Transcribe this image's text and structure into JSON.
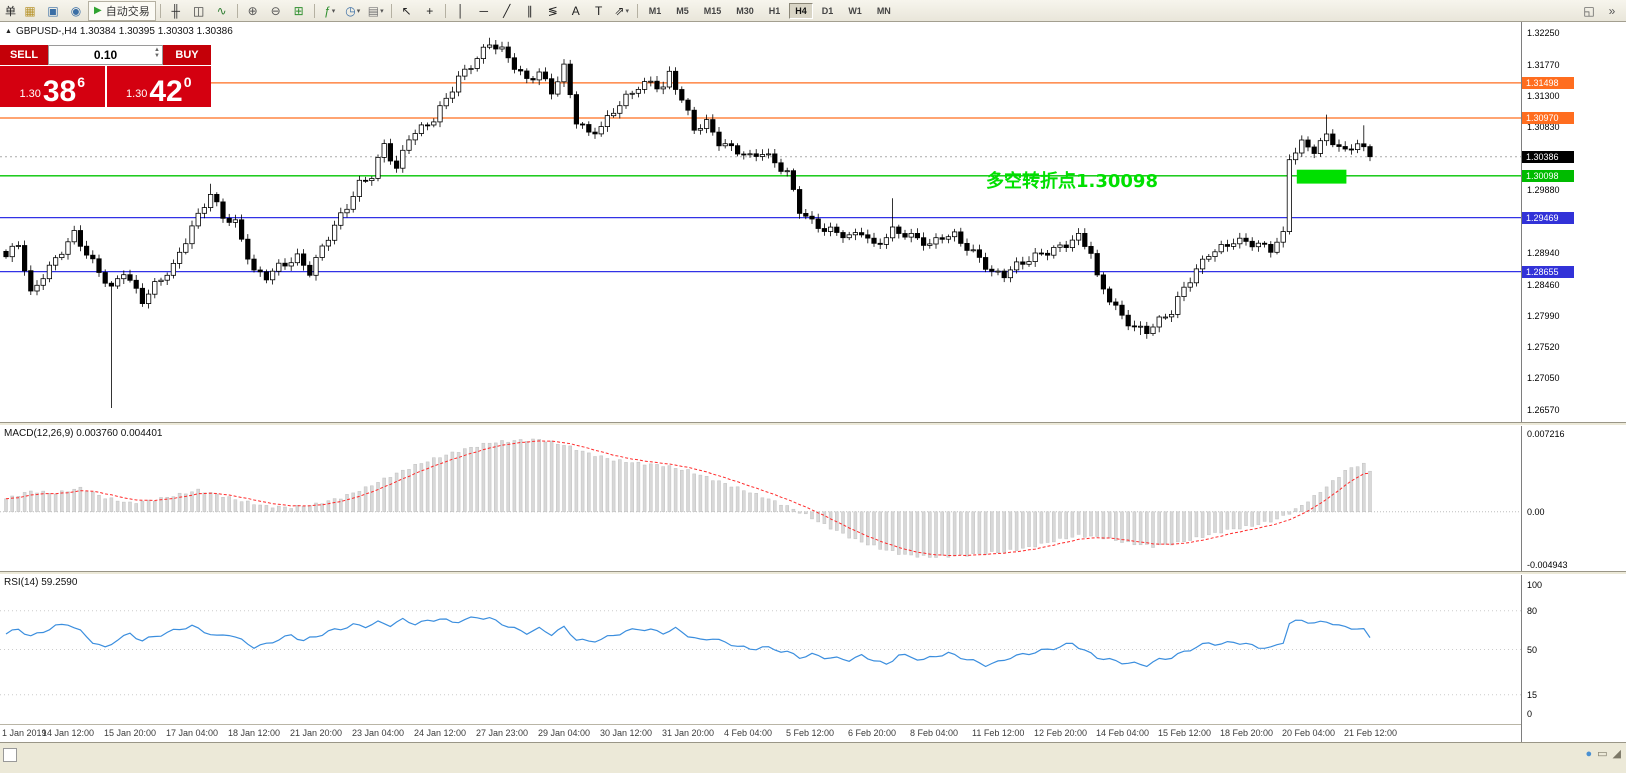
{
  "symbol_header": {
    "marker": "▲",
    "text": "GBPUSD-,H4  1.30384 1.30395 1.30303 1.30386"
  },
  "trade_panel": {
    "sell_label": "SELL",
    "buy_label": "BUY",
    "volume": "0.10",
    "sell_big": {
      "l": "1.30",
      "m": "38",
      "s": "6"
    },
    "buy_big": {
      "l": "1.30",
      "m": "42",
      "s": "0"
    }
  },
  "toolbar": {
    "active_timeframe": "H4",
    "items": [
      {
        "t": "label",
        "name": "cropped-menu-text",
        "g": "单"
      },
      {
        "t": "btn",
        "name": "new-chart-icon",
        "g": "▦",
        "c": "#b8952e"
      },
      {
        "t": "btn",
        "name": "print-icon",
        "g": "▣",
        "c": "#3a6ea5"
      },
      {
        "t": "btn",
        "name": "profile-icon",
        "g": "◉",
        "c": "#3a6ea5"
      },
      {
        "t": "autotrade",
        "name": "autotrading-button",
        "g": "▶",
        "label": "自动交易"
      },
      {
        "t": "sep"
      },
      {
        "t": "btn",
        "name": "bar-chart-icon",
        "g": "╫",
        "c": "#333333"
      },
      {
        "t": "btn",
        "name": "candlestick-icon",
        "g": "◫",
        "c": "#333333"
      },
      {
        "t": "btn",
        "name": "line-chart-icon",
        "g": "∿",
        "c": "#2e7d32"
      },
      {
        "t": "sep"
      },
      {
        "t": "btn",
        "name": "zoom-in-icon",
        "g": "⊕",
        "c": "#555555"
      },
      {
        "t": "btn",
        "name": "zoom-out-icon",
        "g": "⊖",
        "c": "#555555"
      },
      {
        "t": "btn",
        "name": "tile-windows-icon",
        "g": "⊞",
        "c": "#2f8f2f"
      },
      {
        "t": "sep"
      },
      {
        "t": "btn",
        "name": "indicators-icon",
        "g": "ƒ",
        "c": "#2f8f2f",
        "dd": true
      },
      {
        "t": "btn",
        "name": "periods-icon",
        "g": "◷",
        "c": "#3a6ea5",
        "dd": true
      },
      {
        "t": "btn",
        "name": "templates-icon",
        "g": "▤",
        "c": "#777777",
        "dd": true
      },
      {
        "t": "sep"
      },
      {
        "t": "btn",
        "name": "cursor-icon",
        "g": "↖",
        "c": "#222222"
      },
      {
        "t": "btn",
        "name": "crosshair-icon",
        "g": "+",
        "c": "#222222"
      },
      {
        "t": "sep"
      },
      {
        "t": "btn",
        "name": "vertical-line-icon",
        "g": "│",
        "c": "#222222"
      },
      {
        "t": "btn",
        "name": "horizontal-line-icon",
        "g": "─",
        "c": "#222222"
      },
      {
        "t": "btn",
        "name": "trendline-icon",
        "g": "╱",
        "c": "#222222"
      },
      {
        "t": "btn",
        "name": "channel-icon",
        "g": "∥",
        "c": "#222222"
      },
      {
        "t": "btn",
        "name": "fibonacci-icon",
        "g": "≶",
        "c": "#222222"
      },
      {
        "t": "btn",
        "name": "text-icon",
        "g": "A",
        "c": "#222222"
      },
      {
        "t": "btn",
        "name": "label-icon",
        "g": "T",
        "c": "#222222"
      },
      {
        "t": "btn",
        "name": "arrows-icon",
        "g": "⇗",
        "c": "#222222",
        "dd": true
      },
      {
        "t": "sep"
      },
      {
        "t": "tf",
        "label": "M1"
      },
      {
        "t": "tf",
        "label": "M5"
      },
      {
        "t": "tf",
        "label": "M15"
      },
      {
        "t": "tf",
        "label": "M30"
      },
      {
        "t": "tf",
        "label": "H1"
      },
      {
        "t": "tf",
        "label": "H4"
      },
      {
        "t": "tf",
        "label": "D1"
      },
      {
        "t": "tf",
        "label": "W1"
      },
      {
        "t": "tf",
        "label": "MN"
      },
      {
        "t": "spring"
      },
      {
        "t": "btn",
        "name": "toolbar-fullscreen-icon",
        "g": "◱",
        "c": "#555555"
      },
      {
        "t": "btn",
        "name": "toolbar-overflow-icon",
        "g": "»",
        "c": "#555555"
      }
    ]
  },
  "chart_data": {
    "type": "candlestick",
    "symbol": "GBPUSD-",
    "timeframe": "H4",
    "count": 221,
    "x0": 6,
    "dx": 6.2,
    "bw": 4.4,
    "ylim": [
      1.26389,
      1.32416
    ],
    "scale_labels": [
      1.3225,
      1.3177,
      1.313,
      1.3083,
      1.2988,
      1.2894,
      1.2846,
      1.2799,
      1.2752,
      1.2705,
      1.2657
    ],
    "levels": [
      {
        "price": 1.31498,
        "line_color": "#ff6d1f",
        "badge_color": "#ff6d1f",
        "width": 1.3
      },
      {
        "price": 1.3097,
        "line_color": "#ff6d1f",
        "badge_color": "#ff6d1f",
        "width": 1.3
      },
      {
        "price": 1.30386,
        "line_color": "#aaaaaa",
        "badge_color": "#000000",
        "width": 1,
        "dash": "2,3"
      },
      {
        "price": 1.30098,
        "line_color": "#00c400",
        "badge_color": "#00bb00",
        "width": 1.3
      },
      {
        "price": 1.29469,
        "line_color": "#3232e6",
        "badge_color": "#3232d8",
        "width": 1.3
      },
      {
        "price": 1.28655,
        "line_color": "#3232e6",
        "badge_color": "#3232d8",
        "width": 1.3
      }
    ],
    "highlight_rect": {
      "i1": 208.2,
      "i2": 216.2,
      "p1": 1.3019,
      "p2": 1.2998,
      "color": "#00e000"
    },
    "annotation": {
      "text": "多空转折点1.30098",
      "x": 986,
      "y": 165,
      "color": "#00e000",
      "font_size": 18
    },
    "close_anchors": [
      [
        0,
        1.2885
      ],
      [
        2,
        1.2905
      ],
      [
        4,
        1.283
      ],
      [
        6,
        1.2862
      ],
      [
        9,
        1.29
      ],
      [
        11,
        1.2923
      ],
      [
        13,
        1.289
      ],
      [
        15,
        1.2862
      ],
      [
        17,
        1.2838
      ],
      [
        19,
        1.2868
      ],
      [
        22,
        1.2825
      ],
      [
        24,
        1.2846
      ],
      [
        27,
        1.287
      ],
      [
        30,
        1.293
      ],
      [
        32,
        1.2968
      ],
      [
        33,
        1.2985
      ],
      [
        35,
        1.2952
      ],
      [
        37,
        1.294
      ],
      [
        40,
        1.2862
      ],
      [
        42,
        1.2855
      ],
      [
        44,
        1.2872
      ],
      [
        47,
        1.289
      ],
      [
        49,
        1.2868
      ],
      [
        51,
        1.2902
      ],
      [
        53,
        1.2932
      ],
      [
        55,
        1.296
      ],
      [
        57,
        1.2996
      ],
      [
        59,
        1.3012
      ],
      [
        61,
        1.306
      ],
      [
        63,
        1.3022
      ],
      [
        65,
        1.3068
      ],
      [
        67,
        1.3078
      ],
      [
        69,
        1.3092
      ],
      [
        71,
        1.3125
      ],
      [
        73,
        1.316
      ],
      [
        76,
        1.319
      ],
      [
        78,
        1.321
      ],
      [
        80,
        1.3196
      ],
      [
        82,
        1.3172
      ],
      [
        84,
        1.3152
      ],
      [
        86,
        1.3168
      ],
      [
        88,
        1.314
      ],
      [
        90,
        1.3175
      ],
      [
        92,
        1.3092
      ],
      [
        94,
        1.307
      ],
      [
        96,
        1.308
      ],
      [
        98,
        1.3108
      ],
      [
        100,
        1.313
      ],
      [
        102,
        1.3148
      ],
      [
        104,
        1.3152
      ],
      [
        106,
        1.314
      ],
      [
        107,
        1.316
      ],
      [
        109,
        1.3122
      ],
      [
        111,
        1.308
      ],
      [
        113,
        1.3092
      ],
      [
        115,
        1.3064
      ],
      [
        118,
        1.3048
      ],
      [
        120,
        1.3035
      ],
      [
        122,
        1.3042
      ],
      [
        124,
        1.3028
      ],
      [
        126,
        1.3016
      ],
      [
        128,
        1.2962
      ],
      [
        130,
        1.2942
      ],
      [
        132,
        1.2928
      ],
      [
        134,
        1.2922
      ],
      [
        136,
        1.2914
      ],
      [
        138,
        1.2926
      ],
      [
        140,
        1.2906
      ],
      [
        143,
        1.293
      ],
      [
        145,
        1.2922
      ],
      [
        147,
        1.2912
      ],
      [
        149,
        1.2902
      ],
      [
        151,
        1.2918
      ],
      [
        153,
        1.2922
      ],
      [
        155,
        1.2905
      ],
      [
        157,
        1.2888
      ],
      [
        159,
        1.2862
      ],
      [
        161,
        1.2858
      ],
      [
        163,
        1.2872
      ],
      [
        165,
        1.2884
      ],
      [
        167,
        1.2896
      ],
      [
        169,
        1.2902
      ],
      [
        171,
        1.2908
      ],
      [
        173,
        1.2916
      ],
      [
        175,
        1.2892
      ],
      [
        176,
        1.2852
      ],
      [
        178,
        1.2824
      ],
      [
        180,
        1.28
      ],
      [
        182,
        1.2785
      ],
      [
        184,
        1.2778
      ],
      [
        186,
        1.279
      ],
      [
        188,
        1.2802
      ],
      [
        190,
        1.2838
      ],
      [
        192,
        1.2868
      ],
      [
        194,
        1.2896
      ],
      [
        196,
        1.2904
      ],
      [
        198,
        1.2912
      ],
      [
        200,
        1.2908
      ],
      [
        202,
        1.2902
      ],
      [
        204,
        1.2898
      ],
      [
        206,
        1.2922
      ],
      [
        207,
        1.304
      ],
      [
        209,
        1.3062
      ],
      [
        211,
        1.305
      ],
      [
        213,
        1.3068
      ],
      [
        215,
        1.305
      ],
      [
        216,
        1.3042
      ],
      [
        218,
        1.306
      ],
      [
        220,
        1.30386
      ]
    ],
    "spikes": [
      {
        "i": 17,
        "low": 1.266
      },
      {
        "i": 33,
        "high": 1.2998
      },
      {
        "i": 78,
        "high": 1.3218
      },
      {
        "i": 143,
        "high": 1.2976
      },
      {
        "i": 183,
        "low": 1.277
      },
      {
        "i": 213,
        "high": 1.3102
      },
      {
        "i": 219,
        "high": 1.3086
      }
    ]
  },
  "macd": {
    "label": "MACD(12,26,9) 0.003760 0.004401",
    "ylim": [
      -0.005499,
      0.007959
    ],
    "scale_labels": [
      {
        "v": 0.007216,
        "t": "0.007216"
      },
      {
        "v": 0,
        "t": "0.00"
      },
      {
        "v": -0.004943,
        "t": "-0.004943"
      }
    ],
    "hist_fill": "#d8d8d8",
    "hist_stroke": "#c0c0c0",
    "signal_color": "#ff2a2a",
    "main_anchors": [
      [
        0,
        0.0012
      ],
      [
        4,
        0.0019
      ],
      [
        8,
        0.0017
      ],
      [
        12,
        0.0022
      ],
      [
        16,
        0.0013
      ],
      [
        20,
        0.0008
      ],
      [
        24,
        0.0011
      ],
      [
        28,
        0.0016
      ],
      [
        31,
        0.002
      ],
      [
        34,
        0.0016
      ],
      [
        38,
        0.001
      ],
      [
        42,
        0.0005
      ],
      [
        46,
        0.0004
      ],
      [
        50,
        0.0007
      ],
      [
        54,
        0.0013
      ],
      [
        58,
        0.0022
      ],
      [
        62,
        0.0033
      ],
      [
        66,
        0.0043
      ],
      [
        70,
        0.0051
      ],
      [
        74,
        0.0058
      ],
      [
        78,
        0.0064
      ],
      [
        82,
        0.0066
      ],
      [
        86,
        0.0067
      ],
      [
        90,
        0.0062
      ],
      [
        94,
        0.0054
      ],
      [
        98,
        0.0048
      ],
      [
        102,
        0.0045
      ],
      [
        106,
        0.0043
      ],
      [
        110,
        0.0038
      ],
      [
        114,
        0.003
      ],
      [
        118,
        0.0022
      ],
      [
        122,
        0.0014
      ],
      [
        126,
        0.0005
      ],
      [
        129,
        -0.0003
      ],
      [
        133,
        -0.0015
      ],
      [
        137,
        -0.0026
      ],
      [
        141,
        -0.0034
      ],
      [
        145,
        -0.004
      ],
      [
        149,
        -0.0042
      ],
      [
        153,
        -0.0041
      ],
      [
        157,
        -0.0039
      ],
      [
        161,
        -0.0037
      ],
      [
        165,
        -0.0033
      ],
      [
        169,
        -0.0027
      ],
      [
        173,
        -0.0022
      ],
      [
        177,
        -0.0024
      ],
      [
        181,
        -0.0029
      ],
      [
        185,
        -0.0032
      ],
      [
        189,
        -0.0029
      ],
      [
        193,
        -0.0023
      ],
      [
        197,
        -0.0017
      ],
      [
        201,
        -0.0013
      ],
      [
        205,
        -0.0007
      ],
      [
        208,
        0.0002
      ],
      [
        211,
        0.0014
      ],
      [
        214,
        0.0028
      ],
      [
        216,
        0.0038
      ],
      [
        218,
        0.0043
      ],
      [
        219,
        0.0044
      ],
      [
        220,
        0.00376
      ]
    ]
  },
  "rsi": {
    "label": "RSI(14) 59.2590",
    "ylim": [
      -7.75,
      107.75
    ],
    "scale_labels": [
      {
        "v": 100,
        "t": "100"
      },
      {
        "v": 80,
        "t": "80"
      },
      {
        "v": 50,
        "t": "50"
      },
      {
        "v": 15,
        "t": "15"
      },
      {
        "v": 0,
        "t": "0"
      }
    ],
    "levels": [
      80,
      50,
      15
    ],
    "line_color": "#3b8ede",
    "anchors": [
      [
        0,
        62
      ],
      [
        2,
        66
      ],
      [
        4,
        60
      ],
      [
        6,
        64
      ],
      [
        8,
        68
      ],
      [
        10,
        70
      ],
      [
        12,
        64
      ],
      [
        14,
        56
      ],
      [
        16,
        51
      ],
      [
        18,
        58
      ],
      [
        20,
        62
      ],
      [
        22,
        57
      ],
      [
        24,
        60
      ],
      [
        26,
        63
      ],
      [
        28,
        66
      ],
      [
        30,
        68
      ],
      [
        32,
        64
      ],
      [
        34,
        60
      ],
      [
        36,
        62
      ],
      [
        38,
        57
      ],
      [
        40,
        52
      ],
      [
        42,
        54
      ],
      [
        44,
        58
      ],
      [
        46,
        61
      ],
      [
        48,
        57
      ],
      [
        50,
        60
      ],
      [
        52,
        64
      ],
      [
        54,
        66
      ],
      [
        56,
        69
      ],
      [
        58,
        68
      ],
      [
        60,
        71
      ],
      [
        62,
        69
      ],
      [
        64,
        73
      ],
      [
        66,
        70
      ],
      [
        68,
        72
      ],
      [
        70,
        74
      ],
      [
        72,
        71
      ],
      [
        74,
        73
      ],
      [
        76,
        75
      ],
      [
        78,
        74
      ],
      [
        80,
        70
      ],
      [
        82,
        66
      ],
      [
        84,
        63
      ],
      [
        86,
        66
      ],
      [
        88,
        62
      ],
      [
        90,
        67
      ],
      [
        92,
        58
      ],
      [
        94,
        56
      ],
      [
        96,
        58
      ],
      [
        98,
        61
      ],
      [
        100,
        64
      ],
      [
        102,
        66
      ],
      [
        104,
        65
      ],
      [
        106,
        63
      ],
      [
        108,
        66
      ],
      [
        110,
        61
      ],
      [
        112,
        57
      ],
      [
        114,
        59
      ],
      [
        116,
        55
      ],
      [
        118,
        53
      ],
      [
        120,
        50
      ],
      [
        122,
        52
      ],
      [
        124,
        50
      ],
      [
        126,
        48
      ],
      [
        128,
        44
      ],
      [
        130,
        46
      ],
      [
        132,
        44
      ],
      [
        134,
        43
      ],
      [
        136,
        42
      ],
      [
        138,
        45
      ],
      [
        140,
        42
      ],
      [
        142,
        38
      ],
      [
        144,
        46
      ],
      [
        146,
        44
      ],
      [
        148,
        42
      ],
      [
        150,
        45
      ],
      [
        152,
        47
      ],
      [
        154,
        44
      ],
      [
        156,
        41
      ],
      [
        158,
        38
      ],
      [
        160,
        40
      ],
      [
        162,
        44
      ],
      [
        164,
        46
      ],
      [
        166,
        48
      ],
      [
        168,
        50
      ],
      [
        170,
        52
      ],
      [
        172,
        55
      ],
      [
        174,
        49
      ],
      [
        176,
        44
      ],
      [
        178,
        42
      ],
      [
        180,
        40
      ],
      [
        182,
        39
      ],
      [
        184,
        38
      ],
      [
        186,
        42
      ],
      [
        188,
        44
      ],
      [
        190,
        48
      ],
      [
        192,
        52
      ],
      [
        194,
        55
      ],
      [
        196,
        54
      ],
      [
        198,
        56
      ],
      [
        200,
        54
      ],
      [
        202,
        52
      ],
      [
        204,
        51
      ],
      [
        206,
        56
      ],
      [
        207,
        70
      ],
      [
        209,
        73
      ],
      [
        211,
        70
      ],
      [
        213,
        72
      ],
      [
        215,
        68
      ],
      [
        217,
        67
      ],
      [
        219,
        65
      ],
      [
        220,
        59.26
      ]
    ]
  },
  "time_axis": {
    "labels": [
      "1 Jan 2019",
      "14 Jan 12:00",
      "15 Jan 20:00",
      "17 Jan 04:00",
      "18 Jan 12:00",
      "21 Jan 20:00",
      "23 Jan 04:00",
      "24 Jan 12:00",
      "27 Jan 23:00",
      "29 Jan 04:00",
      "30 Jan 12:00",
      "31 Jan 20:00",
      "4 Feb 04:00",
      "5 Feb 12:00",
      "6 Feb 20:00",
      "8 Feb 04:00",
      "11 Feb 12:00",
      "12 Feb 20:00",
      "14 Feb 04:00",
      "15 Feb 12:00",
      "18 Feb 20:00",
      "20 Feb 04:00",
      "21 Feb 12:00"
    ]
  },
  "bottom_bar": {
    "icons": [
      {
        "name": "status-icon",
        "g": "●",
        "c": "#4a90d2"
      },
      {
        "name": "window-icon",
        "g": "▭"
      },
      {
        "name": "resize-grip-icon",
        "g": "◢"
      }
    ]
  }
}
